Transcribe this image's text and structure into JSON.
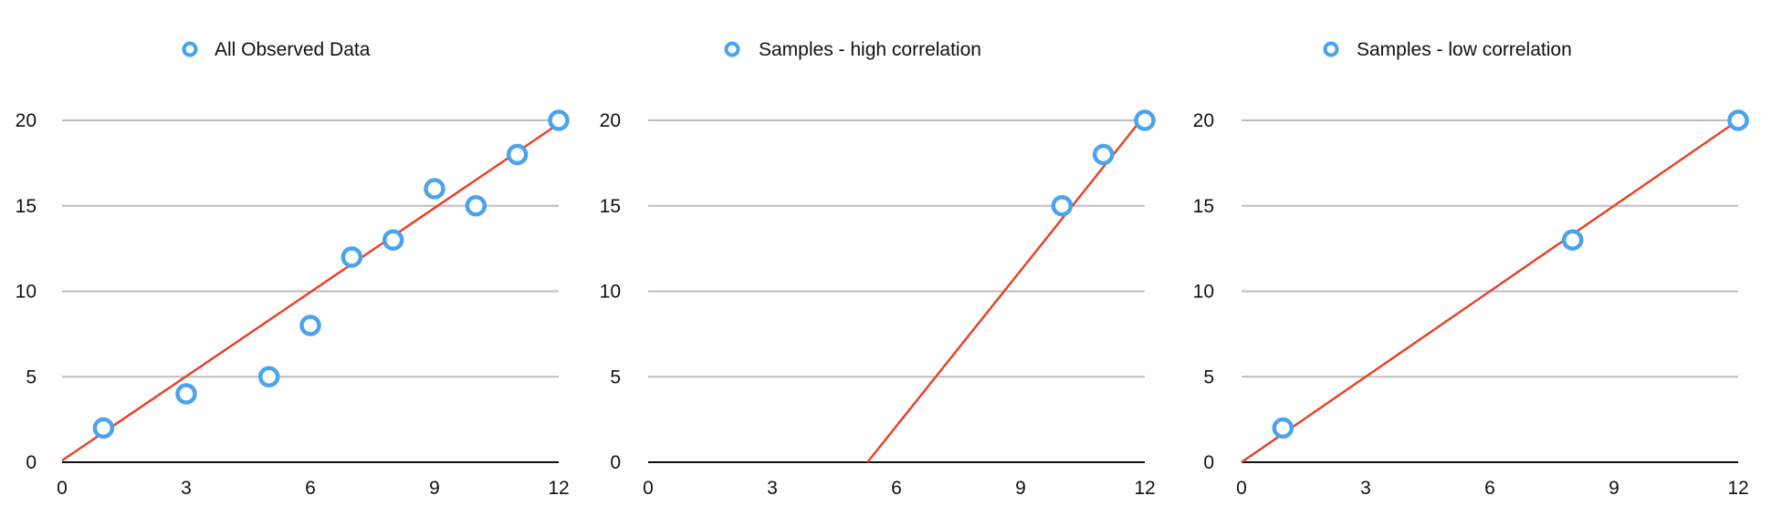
{
  "chart_data": [
    {
      "type": "scatter",
      "legend": "All Observed Data",
      "legend_position": "top-center",
      "series": [
        {
          "name": "All Observed Data",
          "points": [
            [
              1,
              2
            ],
            [
              3,
              4
            ],
            [
              5,
              5
            ],
            [
              6,
              8
            ],
            [
              7,
              12
            ],
            [
              8,
              13
            ],
            [
              9,
              16
            ],
            [
              10,
              15
            ],
            [
              11,
              18
            ],
            [
              12,
              20
            ]
          ]
        }
      ],
      "trendline": {
        "x": [
          0,
          12
        ],
        "y": [
          0.1,
          19.8
        ]
      },
      "xlim": [
        0,
        12
      ],
      "ylim": [
        0,
        20
      ],
      "xticks": [
        0,
        3,
        6,
        9,
        12
      ],
      "yticks": [
        0,
        5,
        10,
        15,
        20
      ],
      "grid": "horizontal",
      "colors": {
        "marker": "#4aa3ee",
        "trend": "#e5432a",
        "grid": "#bdbdbd",
        "axis": "#111111"
      }
    },
    {
      "type": "scatter",
      "legend": "Samples - high correlation",
      "legend_position": "top-center",
      "series": [
        {
          "name": "Samples - high correlation",
          "points": [
            [
              10,
              15
            ],
            [
              11,
              18
            ],
            [
              12,
              20
            ]
          ]
        }
      ],
      "trendline": {
        "x": [
          5.3,
          12
        ],
        "y": [
          0,
          20.3
        ]
      },
      "xlim": [
        0,
        12
      ],
      "ylim": [
        0,
        20
      ],
      "xticks": [
        0,
        3,
        6,
        9,
        12
      ],
      "yticks": [
        0,
        5,
        10,
        15,
        20
      ],
      "grid": "horizontal",
      "colors": {
        "marker": "#4aa3ee",
        "trend": "#e5432a",
        "grid": "#bdbdbd",
        "axis": "#111111"
      }
    },
    {
      "type": "scatter",
      "legend": "Samples - low correlation",
      "legend_position": "top-center",
      "series": [
        {
          "name": "Samples - low correlation",
          "points": [
            [
              1,
              2
            ],
            [
              8,
              13
            ],
            [
              12,
              20
            ]
          ]
        }
      ],
      "trendline": {
        "x": [
          0,
          12
        ],
        "y": [
          0,
          20
        ]
      },
      "xlim": [
        0,
        12
      ],
      "ylim": [
        0,
        20
      ],
      "xticks": [
        0,
        3,
        6,
        9,
        12
      ],
      "yticks": [
        0,
        5,
        10,
        15,
        20
      ],
      "grid": "horizontal",
      "colors": {
        "marker": "#4aa3ee",
        "trend": "#e5432a",
        "grid": "#bdbdbd",
        "axis": "#111111"
      }
    }
  ]
}
